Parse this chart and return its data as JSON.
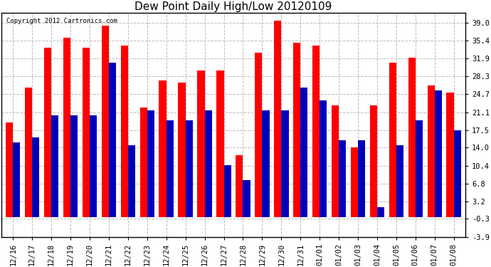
{
  "title": "Dew Point Daily High/Low 20120109",
  "copyright": "Copyright 2012 Cartronics.com",
  "dates": [
    "12/16",
    "12/17",
    "12/18",
    "12/19",
    "12/20",
    "12/21",
    "12/22",
    "12/23",
    "12/24",
    "12/25",
    "12/26",
    "12/27",
    "12/28",
    "12/29",
    "12/30",
    "12/31",
    "01/01",
    "01/02",
    "01/03",
    "01/04",
    "01/05",
    "01/06",
    "01/07",
    "01/08"
  ],
  "highs": [
    19.0,
    26.0,
    34.0,
    36.0,
    34.0,
    38.5,
    34.5,
    22.0,
    27.5,
    27.0,
    29.5,
    29.5,
    12.5,
    33.0,
    39.5,
    35.0,
    34.5,
    22.5,
    14.0,
    22.5,
    31.0,
    32.0,
    26.5,
    25.0
  ],
  "lows": [
    15.0,
    16.0,
    20.5,
    20.5,
    20.5,
    31.0,
    14.5,
    21.5,
    19.5,
    19.5,
    21.5,
    10.5,
    7.5,
    21.5,
    21.5,
    26.0,
    23.5,
    15.5,
    15.5,
    2.0,
    14.5,
    19.5,
    25.5,
    17.5
  ],
  "high_color": "#ff0000",
  "low_color": "#0000bb",
  "bg_color": "#ffffff",
  "grid_color": "#bbbbbb",
  "yticks": [
    -3.9,
    -0.3,
    3.2,
    6.8,
    10.4,
    14.0,
    17.5,
    21.1,
    24.7,
    28.3,
    31.9,
    35.4,
    39.0
  ],
  "ylim": [
    -3.9,
    41.0
  ],
  "bar_width": 0.38
}
